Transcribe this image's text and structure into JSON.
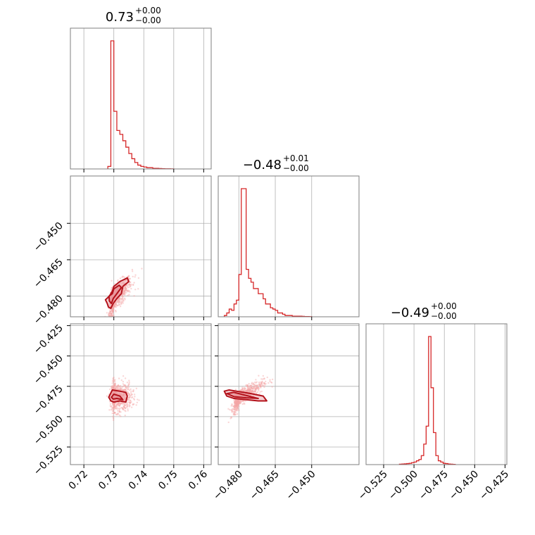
{
  "chart_data": {
    "type": "corner",
    "color": "#d62728",
    "dark_color": "#b3121b",
    "point_color": "#f4a6a6",
    "fill_color": "#e8959b",
    "grid": true,
    "parameters": [
      {
        "title_main": "0.73",
        "title_sup": "+0.00",
        "title_sub": "−0.00",
        "range": [
          0.7155,
          0.7625
        ],
        "ticks": [
          0.72,
          0.73,
          0.74,
          0.75,
          0.76
        ],
        "ticklabels": [
          "0.72",
          "0.73",
          "0.74",
          "0.75",
          "0.76"
        ]
      },
      {
        "title_main": "−0.48",
        "title_sup": "+0.01",
        "title_sub": "−0.00",
        "range": [
          -0.4885,
          -0.4305
        ],
        "ticks": [
          -0.48,
          -0.465,
          -0.45
        ],
        "ticklabels": [
          "−0.480",
          "−0.465",
          "−0.450"
        ]
      },
      {
        "title_main": "−0.49",
        "title_sup": "+0.00",
        "title_sub": "−0.00",
        "range": [
          -0.5395,
          -0.4235
        ],
        "ticks": [
          -0.525,
          -0.5,
          -0.475,
          -0.45,
          -0.425
        ],
        "ticklabels": [
          "−0.525",
          "−0.500",
          "−0.475",
          "−0.450",
          "−0.425"
        ]
      }
    ],
    "histograms": [
      {
        "edges": [
          0.728,
          0.729,
          0.73,
          0.731,
          0.732,
          0.733,
          0.734,
          0.735,
          0.736,
          0.737,
          0.738,
          0.739,
          0.74,
          0.741,
          0.742,
          0.743,
          0.744,
          0.745,
          0.746,
          0.747,
          0.748,
          0.749,
          0.75
        ],
        "counts": [
          2,
          100,
          45,
          30,
          27,
          22,
          17,
          12,
          8,
          5,
          3,
          2,
          1.5,
          1,
          1,
          0.5,
          0.5,
          0.3,
          0.2,
          0.1,
          0.1,
          0.05
        ]
      },
      {
        "edges": [
          -0.486,
          -0.485,
          -0.484,
          -0.483,
          -0.482,
          -0.481,
          -0.48,
          -0.479,
          -0.478,
          -0.477,
          -0.476,
          -0.475,
          -0.474,
          -0.473,
          -0.472,
          -0.471,
          -0.47,
          -0.469,
          -0.468,
          -0.467,
          -0.466,
          -0.465,
          -0.464,
          -0.463,
          -0.462,
          -0.461,
          -0.46,
          -0.459,
          -0.458,
          -0.457,
          -0.456,
          -0.455,
          -0.454,
          -0.453,
          -0.452,
          -0.451,
          -0.45
        ],
        "counts": [
          1,
          3,
          6,
          5,
          10,
          13,
          33,
          100,
          100,
          37,
          30,
          27,
          22,
          22,
          18,
          18,
          14,
          10,
          10,
          7,
          6,
          5,
          3,
          3,
          2,
          1,
          1,
          1,
          0.5,
          0.5,
          0.5,
          0.5,
          0.3,
          0.2,
          0.2,
          0.1
        ]
      },
      {
        "edges": [
          -0.512,
          -0.51,
          -0.508,
          -0.506,
          -0.504,
          -0.502,
          -0.5,
          -0.498,
          -0.496,
          -0.494,
          -0.492,
          -0.49,
          -0.488,
          -0.486,
          -0.484,
          -0.482,
          -0.48,
          -0.478,
          -0.476,
          -0.474,
          -0.472,
          -0.47,
          -0.468,
          -0.466
        ],
        "counts": [
          0.3,
          0.5,
          0.6,
          0.8,
          1,
          1.5,
          2,
          3,
          4,
          7,
          16,
          30,
          100,
          60,
          25,
          7,
          3,
          2,
          1,
          0.8,
          0.5,
          0.3,
          0.2
        ]
      }
    ],
    "pairs": [
      {
        "x": 0,
        "y": 1,
        "center": [
          0.7305,
          -0.4805
        ],
        "spread": [
          0.0028,
          0.004
        ],
        "corr": 0.78,
        "n": 700,
        "contour_outer": [
          [
            0.7278,
            -0.483
          ],
          [
            0.7272,
            -0.4815
          ],
          [
            0.7285,
            -0.48
          ],
          [
            0.7295,
            -0.478
          ],
          [
            0.73,
            -0.476
          ],
          [
            0.732,
            -0.474
          ],
          [
            0.7345,
            -0.4725
          ],
          [
            0.735,
            -0.474
          ],
          [
            0.733,
            -0.476
          ],
          [
            0.7325,
            -0.479
          ],
          [
            0.731,
            -0.481
          ],
          [
            0.7298,
            -0.483
          ],
          [
            0.729,
            -0.485
          ],
          [
            0.7282,
            -0.4845
          ]
        ],
        "contour_inner": [
          [
            0.7285,
            -0.482
          ],
          [
            0.7284,
            -0.48
          ],
          [
            0.7295,
            -0.479
          ],
          [
            0.73,
            -0.477
          ],
          [
            0.7318,
            -0.4755
          ],
          [
            0.7325,
            -0.4765
          ],
          [
            0.731,
            -0.479
          ],
          [
            0.7298,
            -0.481
          ],
          [
            0.7292,
            -0.483
          ]
        ]
      },
      {
        "x": 0,
        "y": 2,
        "center": [
          0.731,
          -0.484
        ],
        "spread": [
          0.0025,
          0.006
        ],
        "corr": 0.0,
        "n": 700,
        "contour_outer": [
          [
            0.7283,
            -0.484
          ],
          [
            0.7295,
            -0.478
          ],
          [
            0.732,
            -0.479
          ],
          [
            0.734,
            -0.48
          ],
          [
            0.7345,
            -0.483
          ],
          [
            0.734,
            -0.488
          ],
          [
            0.732,
            -0.487
          ],
          [
            0.73,
            -0.488
          ],
          [
            0.729,
            -0.487
          ]
        ],
        "contour_inner": [
          [
            0.7292,
            -0.484
          ],
          [
            0.73,
            -0.4815
          ],
          [
            0.732,
            -0.483
          ],
          [
            0.733,
            -0.486
          ],
          [
            0.731,
            -0.485
          ],
          [
            0.7298,
            -0.4855
          ]
        ]
      },
      {
        "x": 1,
        "y": 2,
        "center": [
          -0.479,
          -0.483
        ],
        "spread": [
          0.0045,
          0.006
        ],
        "corr": 0.85,
        "n": 700,
        "contour_outer": [
          [
            -0.486,
            -0.479
          ],
          [
            -0.484,
            -0.478
          ],
          [
            -0.481,
            -0.479
          ],
          [
            -0.478,
            -0.48
          ],
          [
            -0.475,
            -0.481
          ],
          [
            -0.47,
            -0.483
          ],
          [
            -0.4685,
            -0.487
          ],
          [
            -0.472,
            -0.487
          ],
          [
            -0.477,
            -0.486
          ],
          [
            -0.482,
            -0.485
          ],
          [
            -0.485,
            -0.483
          ]
        ],
        "contour_inner": [
          [
            -0.485,
            -0.481
          ],
          [
            -0.482,
            -0.48
          ],
          [
            -0.478,
            -0.482
          ],
          [
            -0.474,
            -0.484
          ],
          [
            -0.472,
            -0.485
          ],
          [
            -0.477,
            -0.4845
          ],
          [
            -0.482,
            -0.4835
          ]
        ]
      }
    ]
  }
}
